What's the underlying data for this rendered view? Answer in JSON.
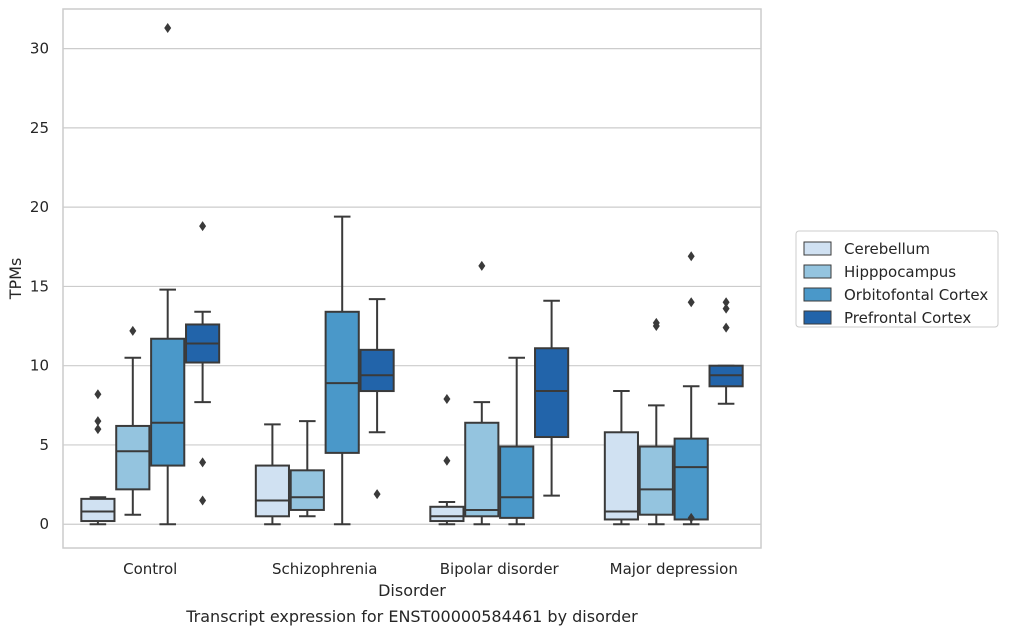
{
  "caption": "Transcript expression for ENST00000584461 by disorder",
  "chart_data": {
    "type": "box",
    "xlabel": "Disorder",
    "ylabel": "TPMs",
    "ylim": [
      -1.5,
      32.5
    ],
    "yticks": [
      0,
      5,
      10,
      15,
      20,
      25,
      30
    ],
    "grid": "horizontal",
    "legend_position": "right",
    "categories": [
      "Control",
      "Schizophrenia",
      "Bipolar disorder",
      "Major depression"
    ],
    "series": [
      {
        "name": "Cerebellum",
        "color": "#d0e1f2",
        "boxes": [
          {
            "whisker_low": 0.0,
            "q1": 0.2,
            "median": 0.8,
            "q3": 1.6,
            "whisker_high": 1.7,
            "outliers": [
              8.2,
              6.5,
              6.0
            ]
          },
          {
            "whisker_low": 0.0,
            "q1": 0.5,
            "median": 1.5,
            "q3": 3.7,
            "whisker_high": 6.3,
            "outliers": []
          },
          {
            "whisker_low": 0.0,
            "q1": 0.2,
            "median": 0.5,
            "q3": 1.1,
            "whisker_high": 1.4,
            "outliers": [
              7.9,
              4.0
            ]
          },
          {
            "whisker_low": 0.0,
            "q1": 0.3,
            "median": 0.8,
            "q3": 5.8,
            "whisker_high": 8.4,
            "outliers": []
          }
        ]
      },
      {
        "name": "Hipppocampus",
        "color": "#94c4df",
        "boxes": [
          {
            "whisker_low": 0.6,
            "q1": 2.2,
            "median": 4.6,
            "q3": 6.2,
            "whisker_high": 10.5,
            "outliers": [
              12.2
            ]
          },
          {
            "whisker_low": 0.5,
            "q1": 0.9,
            "median": 1.7,
            "q3": 3.4,
            "whisker_high": 6.5,
            "outliers": []
          },
          {
            "whisker_low": 0.0,
            "q1": 0.5,
            "median": 0.9,
            "q3": 6.4,
            "whisker_high": 7.7,
            "outliers": [
              16.3
            ]
          },
          {
            "whisker_low": 0.0,
            "q1": 0.6,
            "median": 2.2,
            "q3": 4.9,
            "whisker_high": 7.5,
            "outliers": [
              12.7,
              12.5
            ]
          }
        ]
      },
      {
        "name": "Orbitofontal Cortex",
        "color": "#4a98c9",
        "boxes": [
          {
            "whisker_low": 0.0,
            "q1": 3.7,
            "median": 6.4,
            "q3": 11.7,
            "whisker_high": 14.8,
            "outliers": [
              31.3
            ]
          },
          {
            "whisker_low": 0.0,
            "q1": 4.5,
            "median": 8.9,
            "q3": 13.4,
            "whisker_high": 19.4,
            "outliers": []
          },
          {
            "whisker_low": 0.0,
            "q1": 0.4,
            "median": 1.7,
            "q3": 4.9,
            "whisker_high": 10.5,
            "outliers": []
          },
          {
            "whisker_low": 0.0,
            "q1": 0.3,
            "median": 3.6,
            "q3": 5.4,
            "whisker_high": 8.7,
            "outliers": [
              16.9,
              14.0,
              0.4
            ]
          }
        ]
      },
      {
        "name": "Prefrontal Cortex",
        "color": "#2264aa",
        "boxes": [
          {
            "whisker_low": 7.7,
            "q1": 10.2,
            "median": 11.4,
            "q3": 12.6,
            "whisker_high": 13.4,
            "outliers": [
              18.8,
              3.9,
              1.5
            ]
          },
          {
            "whisker_low": 5.8,
            "q1": 8.4,
            "median": 9.4,
            "q3": 11.0,
            "whisker_high": 14.2,
            "outliers": [
              1.9
            ]
          },
          {
            "whisker_low": 1.8,
            "q1": 5.5,
            "median": 8.4,
            "q3": 11.1,
            "whisker_high": 14.1,
            "outliers": []
          },
          {
            "whisker_low": 7.6,
            "q1": 8.7,
            "median": 9.4,
            "q3": 10.0,
            "whisker_high": 10.0,
            "outliers": [
              14.0,
              13.6,
              12.4
            ]
          }
        ]
      }
    ]
  }
}
